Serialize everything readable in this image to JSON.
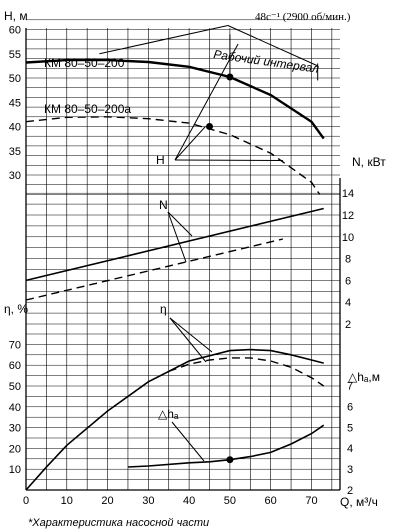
{
  "header": {
    "speed": "48c⁻¹  (2900 об/мин.)"
  },
  "labels": {
    "h_axis": "H, м",
    "n_axis": "N, кВт",
    "eta_axis": "η, %",
    "dh_axis": "△hₐ,м",
    "q_axis": "Q, м³/ч",
    "pump_a": "КМ 80–50–200",
    "pump_b": "КМ 80–50–200а",
    "working_range": "Рабочий интервал",
    "h_curve": "H",
    "n_curve": "N",
    "eta_curve": "η",
    "dh_curve": "△hₐ"
  },
  "caption": "*Характеристика насосной части",
  "chart_data": {
    "type": "line",
    "x_ticks": [
      0,
      10,
      20,
      30,
      40,
      50,
      60,
      70
    ],
    "xlim": [
      0,
      75
    ],
    "panels": {
      "head": {
        "ylim": [
          25,
          63
        ],
        "ticks": [
          30,
          35,
          40,
          45,
          50,
          55,
          60
        ],
        "series": [
          {
            "name": "КМ 80–50–200",
            "style": "solid",
            "x": [
              0,
              10,
              20,
              30,
              40,
              50,
              60,
              70,
              73
            ],
            "y": [
              53.2,
              53.7,
              53.7,
              53.3,
              52.3,
              50.2,
              46.5,
              41,
              37.5
            ]
          },
          {
            "name": "КМ 80–50–200а",
            "style": "dashed",
            "x": [
              0,
              10,
              20,
              30,
              40,
              50,
              60,
              70,
              72
            ],
            "y": [
              41,
              41.9,
              42,
              41.6,
              40.7,
              38.3,
              34.5,
              28.5,
              26
            ]
          }
        ],
        "points": [
          {
            "x": 50,
            "y": 50.2
          },
          {
            "x": 45,
            "y": 40
          }
        ]
      },
      "power": {
        "ylim": [
          1.5,
          15
        ],
        "ticks": [
          2,
          4,
          6,
          8,
          10,
          12,
          14
        ],
        "series": [
          {
            "name": "КМ 80–50–200",
            "style": "solid",
            "x": [
              0,
              73
            ],
            "y": [
              6,
              12.6
            ]
          },
          {
            "name": "КМ 80–50–200а",
            "style": "dashed",
            "x": [
              0,
              63
            ],
            "y": [
              4.2,
              9.8
            ]
          }
        ]
      },
      "efficiency": {
        "ylim": [
          0,
          76
        ],
        "ticks": [
          10,
          20,
          30,
          40,
          50,
          60,
          70
        ],
        "series": [
          {
            "name": "КМ 80–50–200",
            "style": "solid",
            "x": [
              0,
              5,
              10,
              20,
              30,
              40,
              50,
              55,
              60,
              65,
              70,
              73
            ],
            "y": [
              0,
              11,
              21.5,
              38,
              52,
              62,
              67,
              67.5,
              67,
              65,
              62.5,
              61
            ]
          },
          {
            "name": "КМ 80–50–200а",
            "style": "dashed",
            "x": [
              35,
              40,
              45,
              50,
              55,
              60,
              65,
              70,
              73
            ],
            "y": [
              57,
              60.5,
              62.5,
              63.5,
              63.5,
              62,
              59,
              54,
              50
            ]
          }
        ]
      },
      "npsh": {
        "ylim": [
          2,
          7.5
        ],
        "ticks": [
          2,
          3,
          4,
          5,
          6,
          7
        ],
        "series": [
          {
            "name": "△hₐ",
            "style": "solid",
            "x": [
              25,
              30,
              40,
              45,
              50,
              55,
              60,
              65,
              70,
              73
            ],
            "y": [
              3.1,
              3.15,
              3.3,
              3.35,
              3.45,
              3.6,
              3.8,
              4.2,
              4.7,
              5.1
            ]
          }
        ],
        "points": [
          {
            "x": 50,
            "y": 3.45
          }
        ]
      }
    },
    "working_interval": {
      "q_min": 50,
      "q_max": 73
    }
  }
}
